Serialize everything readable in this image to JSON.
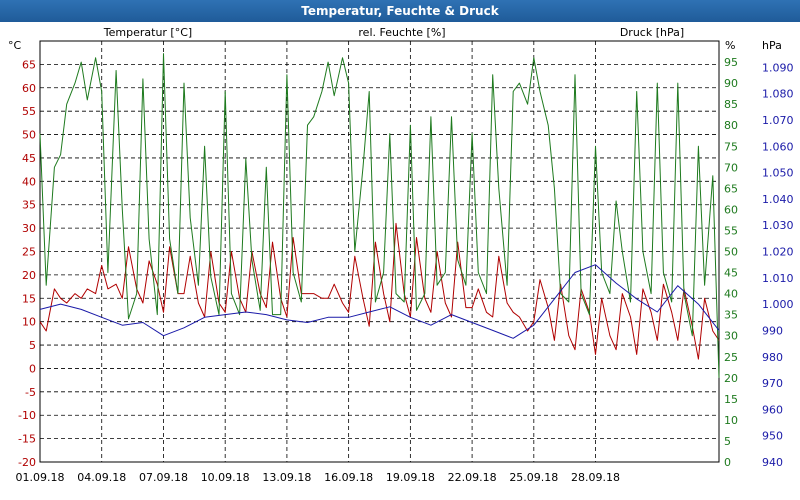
{
  "window": {
    "title": "Temperatur, Feuchte & Druck"
  },
  "chart_data": {
    "type": "line",
    "title": "Temperatur, Feuchte & Druck",
    "grid": true,
    "x_tick_labels": [
      "01.09.18",
      "04.09.18",
      "07.09.18",
      "10.09.18",
      "13.09.18",
      "16.09.18",
      "19.09.18",
      "22.09.18",
      "25.09.18",
      "28.09.18"
    ],
    "x_range_days": [
      0,
      33
    ],
    "axes": {
      "temperature": {
        "label": "Temperatur [°C]",
        "unit": "°C",
        "range": [
          -20,
          70
        ],
        "ticks": [
          -20,
          -15,
          -10,
          -5,
          0,
          5,
          10,
          15,
          20,
          25,
          30,
          35,
          40,
          45,
          50,
          55,
          60,
          65
        ],
        "color": "#b00000"
      },
      "humidity": {
        "label": "rel. Feuchte [%]",
        "unit": "%",
        "range": [
          0,
          100
        ],
        "ticks": [
          0,
          5,
          10,
          15,
          20,
          25,
          30,
          35,
          40,
          45,
          50,
          55,
          60,
          65,
          70,
          75,
          80,
          85,
          90,
          95
        ],
        "color": "#1e7a1e"
      },
      "pressure": {
        "label": "Druck [hPa]",
        "unit": "hPa",
        "range": [
          940,
          1100
        ],
        "ticks": [
          "940",
          "950",
          "960",
          "970",
          "980",
          "990",
          "1.000",
          "1.010",
          "1.020",
          "1.030",
          "1.040",
          "1.050",
          "1.060",
          "1.070",
          "1.080",
          "1.090"
        ],
        "color": "#1a1aa8"
      }
    },
    "series": [
      {
        "name": "Temperatur [°C]",
        "axis": "temperature",
        "color": "#b00000",
        "x": [
          0,
          0.3,
          0.7,
          1,
          1.3,
          1.7,
          2,
          2.3,
          2.7,
          3,
          3.3,
          3.7,
          4,
          4.3,
          4.7,
          5,
          5.3,
          5.7,
          6,
          6.3,
          6.7,
          7,
          7.3,
          7.7,
          8,
          8.3,
          8.7,
          9,
          9.3,
          9.7,
          10,
          10.3,
          10.7,
          11,
          11.3,
          11.7,
          12,
          12.3,
          12.7,
          13,
          13.3,
          13.7,
          14,
          14.3,
          14.7,
          15,
          15.3,
          15.7,
          16,
          16.3,
          16.7,
          17,
          17.3,
          17.7,
          18,
          18.3,
          18.7,
          19,
          19.3,
          19.7,
          20,
          20.3,
          20.7,
          21,
          21.3,
          21.7,
          22,
          22.3,
          22.7,
          23,
          23.3,
          23.7,
          24,
          24.3,
          24.7,
          25,
          25.3,
          25.7,
          26,
          26.3,
          26.7,
          27,
          27.3,
          27.7,
          28,
          28.3,
          28.7,
          29,
          29.3,
          29.7,
          30,
          30.3,
          30.7,
          31,
          31.3,
          31.7,
          32,
          32.3,
          32.7,
          33
        ],
        "values": [
          10,
          8,
          17,
          15,
          14,
          16,
          15,
          17,
          16,
          22,
          17,
          18,
          15,
          26,
          17,
          14,
          23,
          18,
          12,
          26,
          16,
          16,
          24,
          14,
          11,
          25,
          14,
          12,
          25,
          15,
          12,
          25,
          16,
          13,
          27,
          15,
          11,
          28,
          16,
          16,
          16,
          15,
          15,
          18,
          14,
          12,
          24,
          15,
          9,
          27,
          16,
          10,
          31,
          16,
          11,
          28,
          15,
          12,
          25,
          14,
          11,
          27,
          13,
          13,
          17,
          12,
          11,
          24,
          14,
          12,
          11,
          8,
          10,
          19,
          13,
          6,
          18,
          7,
          4,
          17,
          12,
          3,
          15,
          7,
          4,
          16,
          11,
          3,
          17,
          12,
          6,
          18,
          12,
          6,
          17,
          9,
          2,
          15,
          8,
          6
        ]
      },
      {
        "name": "rel. Feuchte [%]",
        "axis": "humidity",
        "color": "#1e7a1e",
        "x": [
          0,
          0.3,
          0.7,
          1,
          1.3,
          1.7,
          2,
          2.3,
          2.7,
          3,
          3.3,
          3.7,
          4,
          4.3,
          4.7,
          5,
          5.3,
          5.7,
          6,
          6.3,
          6.7,
          7,
          7.3,
          7.7,
          8,
          8.3,
          8.7,
          9,
          9.3,
          9.7,
          10,
          10.3,
          10.7,
          11,
          11.3,
          11.7,
          12,
          12.3,
          12.7,
          13,
          13.3,
          13.7,
          14,
          14.3,
          14.7,
          15,
          15.3,
          15.7,
          16,
          16.3,
          16.7,
          17,
          17.3,
          17.7,
          18,
          18.3,
          18.7,
          19,
          19.3,
          19.7,
          20,
          20.3,
          20.7,
          21,
          21.3,
          21.7,
          22,
          22.3,
          22.7,
          23,
          23.3,
          23.7,
          24,
          24.3,
          24.7,
          25,
          25.3,
          25.7,
          26,
          26.3,
          26.7,
          27,
          27.3,
          27.7,
          28,
          28.3,
          28.7,
          29,
          29.3,
          29.7,
          30,
          30.3,
          30.7,
          31,
          31.3,
          31.7,
          32,
          32.3,
          32.7,
          33
        ],
        "values": [
          78,
          42,
          70,
          73,
          85,
          90,
          95,
          86,
          96,
          88,
          45,
          93,
          60,
          34,
          40,
          91,
          53,
          35,
          97,
          53,
          40,
          90,
          58,
          42,
          75,
          44,
          35,
          88,
          40,
          35,
          72,
          48,
          36,
          70,
          35,
          35,
          92,
          45,
          38,
          80,
          82,
          88,
          95,
          87,
          96,
          90,
          50,
          70,
          88,
          38,
          45,
          78,
          40,
          38,
          80,
          36,
          40,
          82,
          42,
          45,
          82,
          48,
          42,
          78,
          45,
          40,
          92,
          65,
          42,
          88,
          90,
          85,
          96,
          88,
          80,
          65,
          40,
          38,
          92,
          40,
          35,
          75,
          45,
          40,
          62,
          50,
          38,
          88,
          50,
          40,
          90,
          45,
          38,
          90,
          40,
          30,
          75,
          42,
          68,
          20
        ]
      },
      {
        "name": "Druck [hPa]",
        "axis": "pressure",
        "color": "#1a1aa8",
        "x": [
          0,
          1,
          2,
          3,
          4,
          5,
          6,
          7,
          8,
          9,
          10,
          11,
          12,
          13,
          14,
          15,
          16,
          17,
          18,
          19,
          20,
          21,
          22,
          23,
          24,
          25,
          26,
          27,
          28,
          29,
          30,
          31,
          32,
          33
        ],
        "values": [
          998,
          1000,
          998,
          995,
          992,
          993,
          988,
          991,
          995,
          996,
          997,
          996,
          994,
          993,
          995,
          995,
          997,
          999,
          995,
          992,
          996,
          993,
          990,
          987,
          992,
          1002,
          1012,
          1015,
          1008,
          1002,
          997,
          1007,
          1000,
          990
        ]
      }
    ]
  }
}
